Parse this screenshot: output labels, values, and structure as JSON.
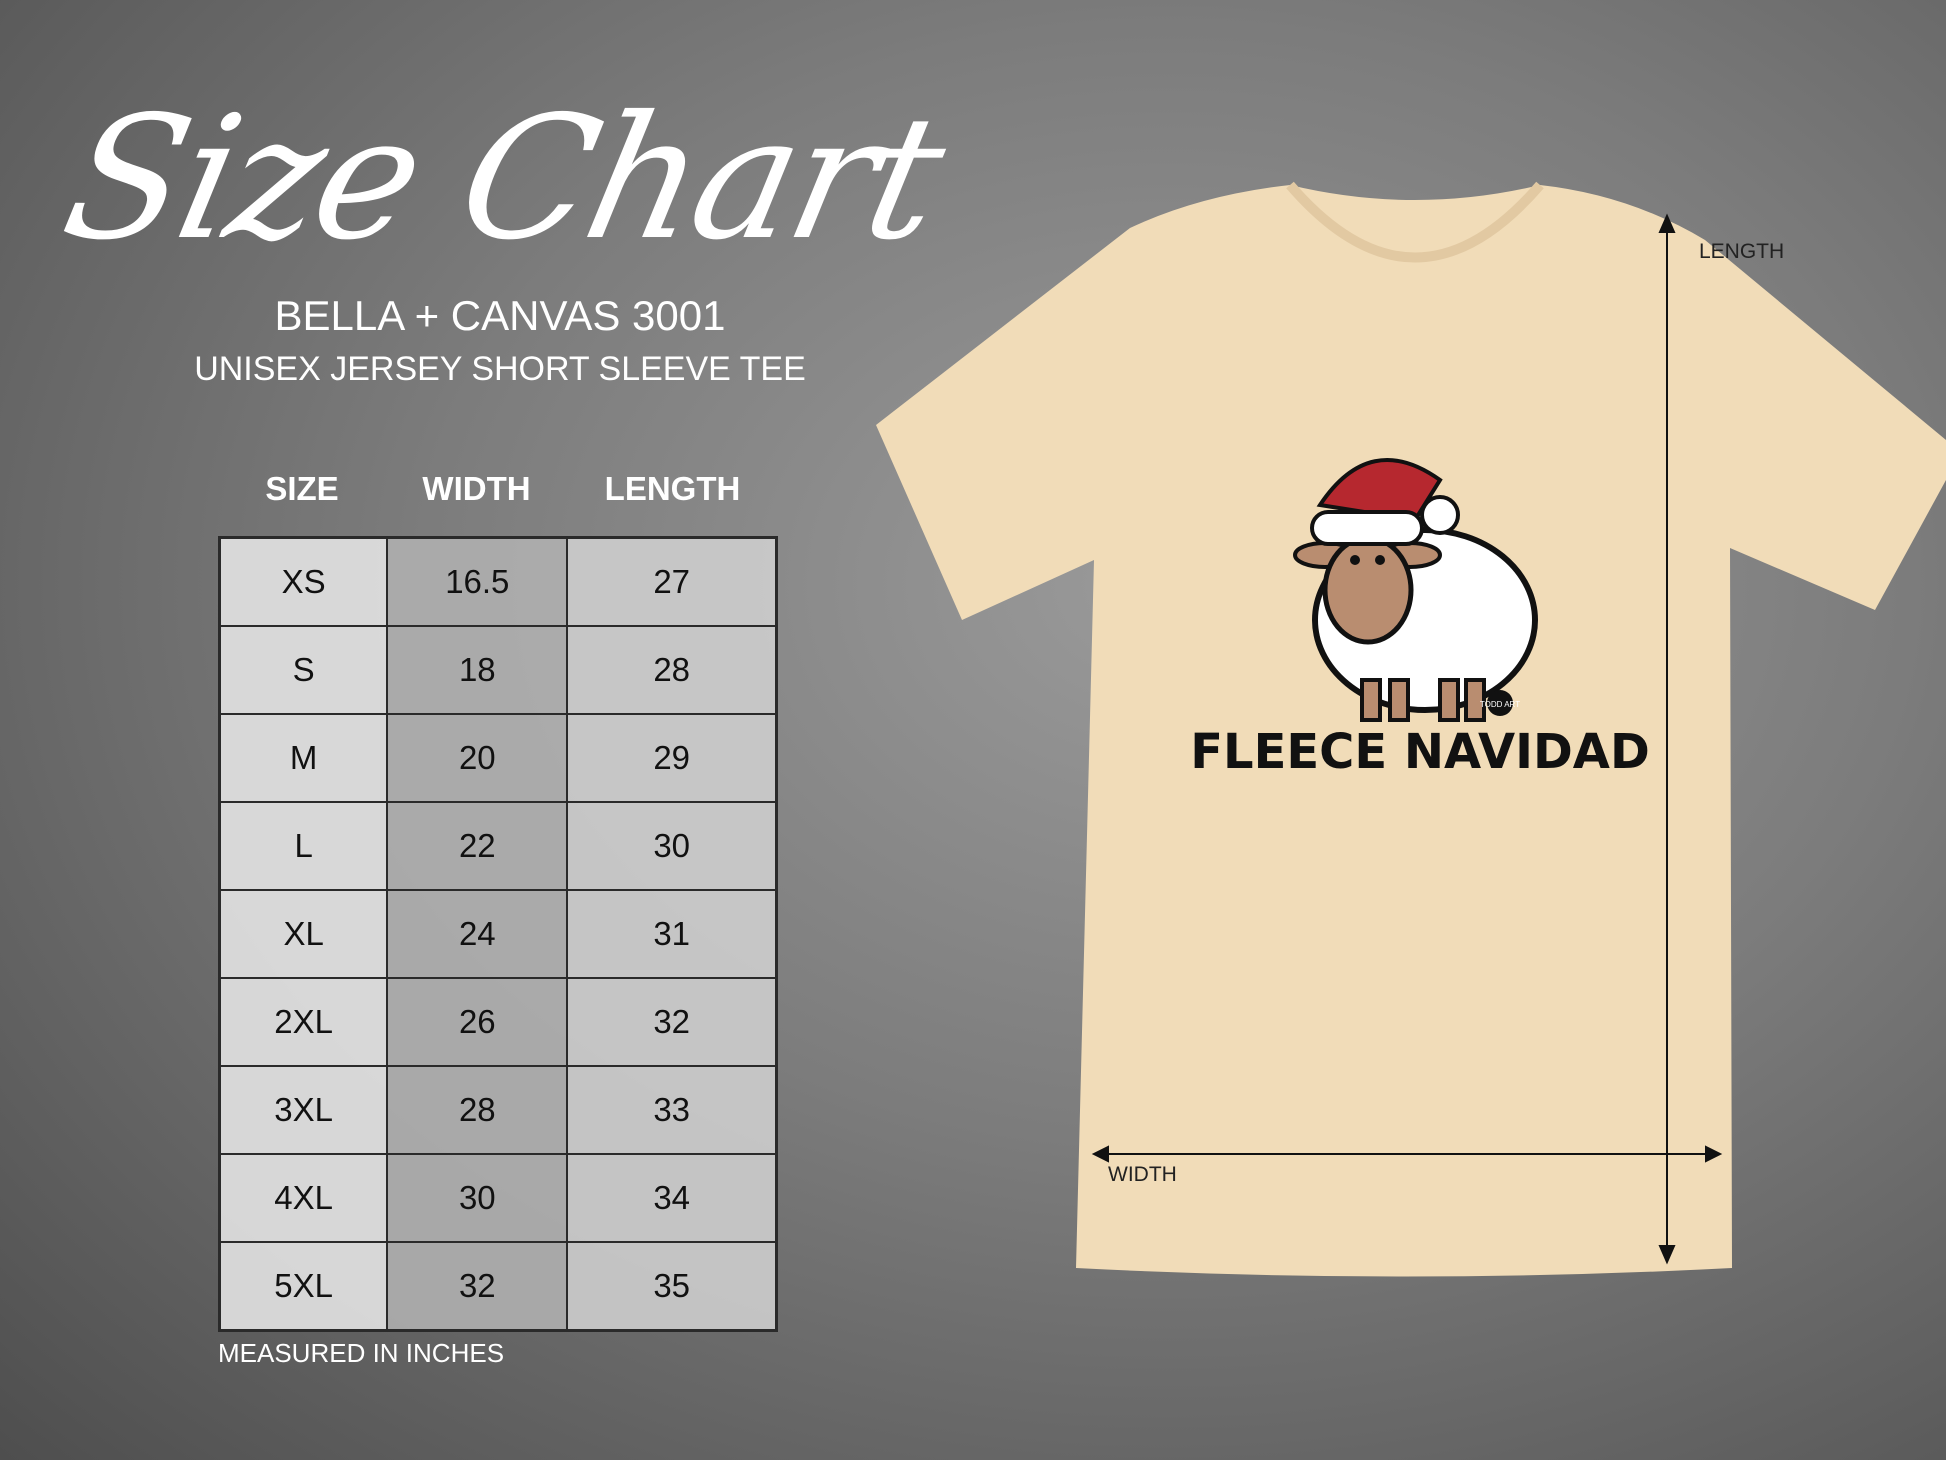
{
  "title": "Size Chart",
  "brand": "BELLA + CANVAS 3001",
  "subtitle": "UNISEX JERSEY SHORT SLEEVE TEE",
  "table": {
    "headers": [
      "SIZE",
      "WIDTH",
      "LENGTH"
    ],
    "rows": [
      [
        "XS",
        "16.5",
        "27"
      ],
      [
        "S",
        "18",
        "28"
      ],
      [
        "M",
        "20",
        "29"
      ],
      [
        "L",
        "22",
        "30"
      ],
      [
        "XL",
        "24",
        "31"
      ],
      [
        "2XL",
        "26",
        "32"
      ],
      [
        "3XL",
        "28",
        "33"
      ],
      [
        "4XL",
        "30",
        "34"
      ],
      [
        "5XL",
        "32",
        "35"
      ]
    ]
  },
  "note": "MEASURED IN INCHES",
  "shirt": {
    "color": "#f1dcb8",
    "print_text": "FLEECE NAVIDAD",
    "logo": "TODD ART",
    "length_label": "LENGTH",
    "width_label": "WIDTH"
  }
}
